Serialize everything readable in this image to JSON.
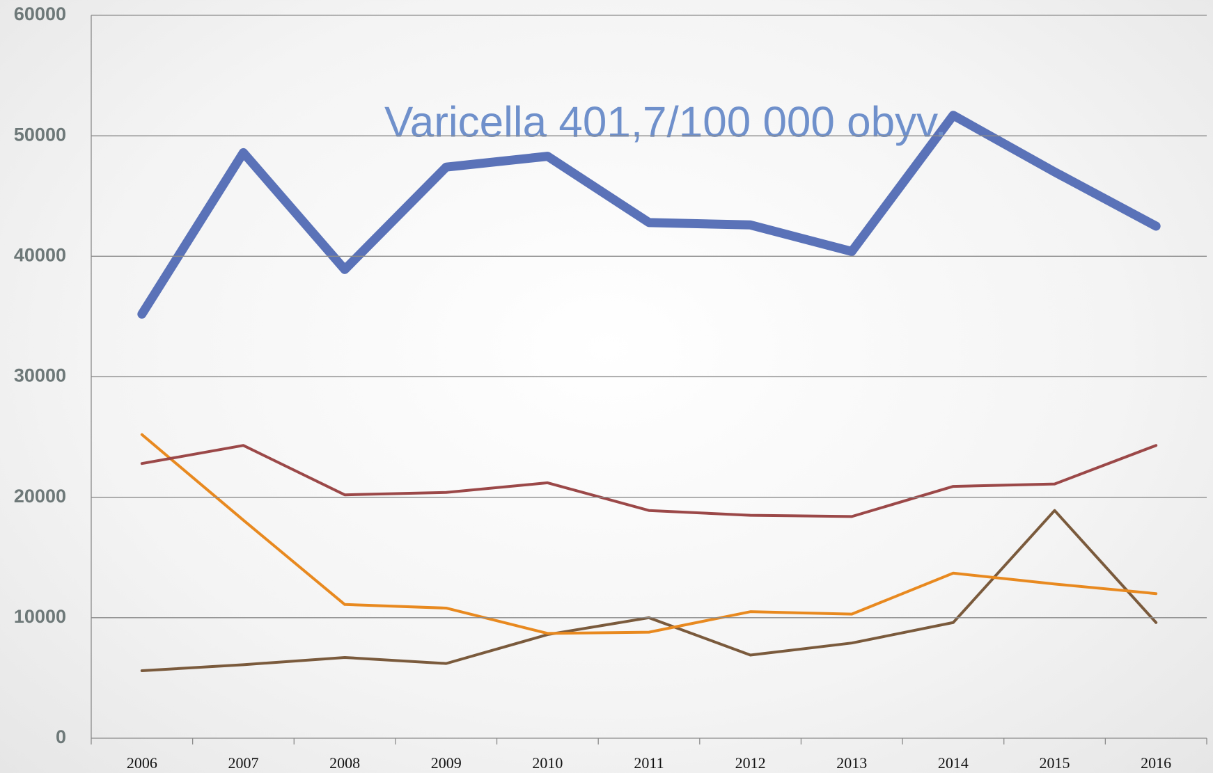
{
  "chart_data": {
    "type": "line",
    "annotation": "Varicella   401,7/100 000 obyv.",
    "categories": [
      "2006",
      "2007",
      "2008",
      "2009",
      "2010",
      "2011",
      "2012",
      "2013",
      "2014",
      "2015",
      "2016"
    ],
    "series": [
      {
        "color": "#5a72b8",
        "values": [
          35200,
          48600,
          38900,
          47400,
          48300,
          42800,
          42600,
          40400,
          51700,
          47000,
          42500
        ]
      },
      {
        "color": "#9b4848",
        "values": [
          22800,
          24300,
          20200,
          20400,
          21200,
          18900,
          18500,
          18400,
          20900,
          21100,
          24300
        ]
      },
      {
        "color": "#e8891f",
        "values": [
          25200,
          18100,
          11100,
          10800,
          8700,
          8800,
          10500,
          10300,
          13700,
          12800,
          12000
        ]
      },
      {
        "color": "#7a5a3c",
        "values": [
          5600,
          6100,
          6700,
          6200,
          8600,
          10000,
          6900,
          7900,
          9600,
          18900,
          9600
        ]
      }
    ],
    "ylim": [
      0,
      60000
    ],
    "yticks": [
      0,
      10000,
      20000,
      30000,
      40000,
      50000,
      60000
    ],
    "grid": true
  }
}
